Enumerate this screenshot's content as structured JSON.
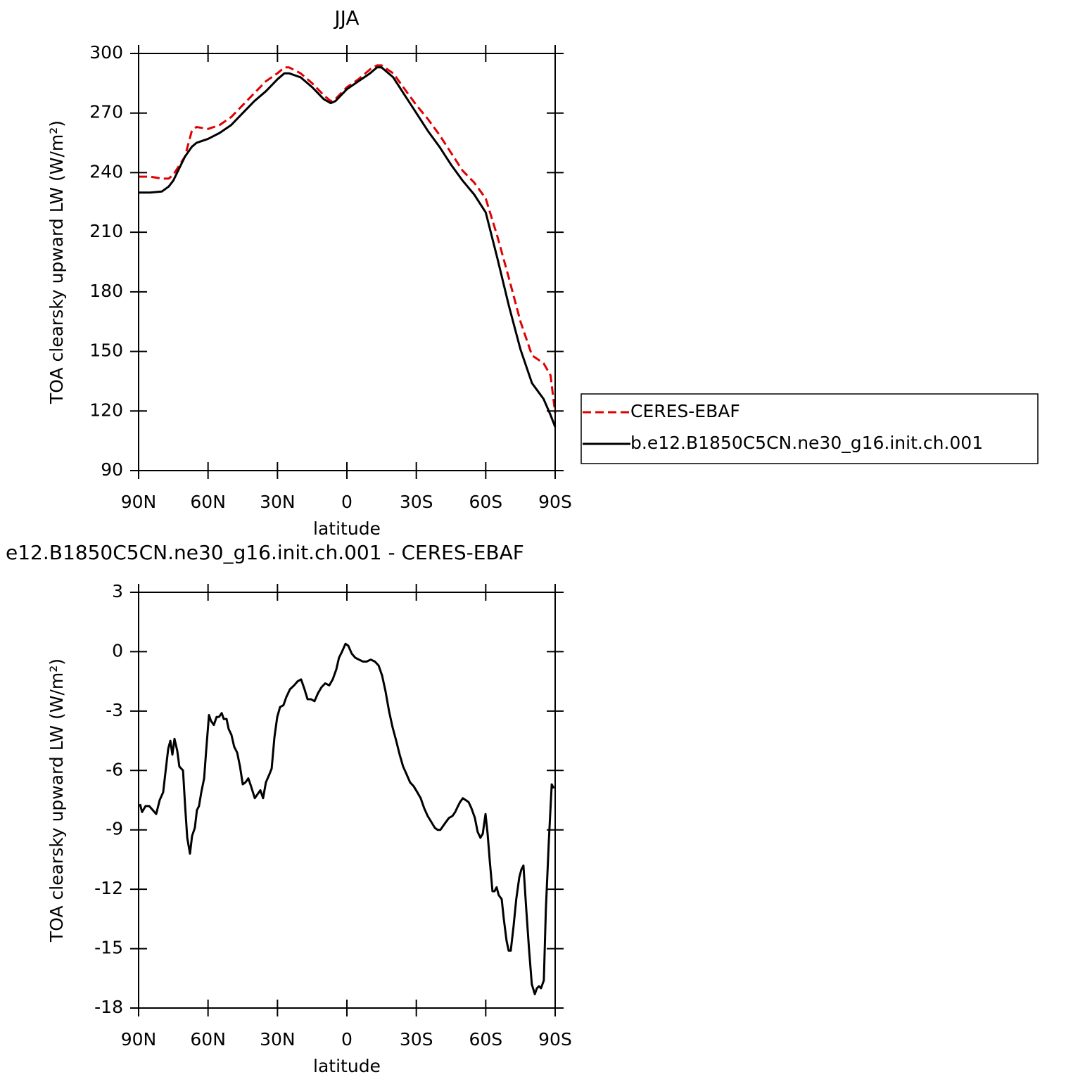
{
  "chart_data": [
    {
      "type": "line",
      "title": "JJA",
      "x_label": "latitude",
      "y_label": "TOA clearsky upward LW (W/m²)",
      "x": [
        90,
        85,
        80,
        77,
        75,
        70,
        67,
        65,
        60,
        55,
        50,
        45,
        40,
        35,
        30,
        27,
        25,
        20,
        15,
        10,
        7,
        5,
        0,
        -5,
        -10,
        -13,
        -15,
        -20,
        -25,
        -30,
        -35,
        -40,
        -45,
        -50,
        -55,
        -60,
        -65,
        -70,
        -75,
        -80,
        -85,
        -88,
        -90
      ],
      "series": [
        {
          "name": "CERES-EBAF",
          "color": "#e00000",
          "line_style": "dashed",
          "values": [
            238,
            238,
            237,
            237,
            239,
            248,
            261,
            263,
            262,
            264,
            268,
            274,
            280,
            286,
            290,
            293,
            293,
            290,
            285,
            279,
            276,
            277,
            283,
            287,
            292,
            294,
            294,
            290,
            282,
            274,
            267,
            259,
            250,
            241,
            235,
            227,
            208,
            187,
            165,
            148,
            144,
            138,
            119
          ]
        },
        {
          "name": "b.e12.B1850C5CN.ne30_g16.init.ch.001",
          "color": "#000000",
          "line_style": "solid",
          "values": [
            230,
            230,
            230.5,
            233,
            236,
            248,
            253,
            255,
            257,
            260,
            264,
            270,
            276,
            281,
            287,
            290,
            290,
            288,
            283,
            277,
            275,
            276,
            282,
            286,
            290,
            293,
            293,
            288,
            279,
            270,
            261,
            253,
            244,
            236,
            229,
            220,
            197,
            173,
            151,
            134,
            126,
            118,
            112
          ]
        }
      ],
      "xlim": [
        90,
        -90
      ],
      "xticks": [
        {
          "value": 90,
          "label": "90N"
        },
        {
          "value": 60,
          "label": "60N"
        },
        {
          "value": 30,
          "label": "30N"
        },
        0,
        {
          "value": -30,
          "label": "30S"
        },
        {
          "value": -60,
          "label": "60S"
        },
        {
          "value": -90,
          "label": "90S"
        }
      ],
      "ylim": [
        90,
        300
      ],
      "yticks": [
        90,
        120,
        150,
        180,
        210,
        240,
        270,
        300
      ],
      "legend": "right"
    },
    {
      "type": "line",
      "title": "e12.B1850C5CN.ne30_g16.init.ch.001 - CERES-EBAF",
      "x_label": "latitude",
      "y_label": "TOA clearsky upward LW (W/m²)",
      "color": "#000000",
      "x": [
        89.4,
        88.5,
        87.0,
        85.4,
        83.9,
        82.4,
        80.9,
        79.4,
        78.1,
        77.2,
        76.3,
        75.4,
        74.5,
        73.3,
        72.4,
        70.8,
        69.9,
        69.0,
        67.8,
        66.9,
        65.7,
        64.8,
        63.9,
        62.9,
        61.7,
        60.8,
        59.6,
        58.7,
        57.5,
        56.3,
        55.3,
        54.1,
        53.2,
        52.0,
        51.1,
        49.9,
        48.7,
        47.4,
        46.2,
        45.0,
        43.8,
        42.6,
        41.4,
        39.8,
        38.6,
        37.4,
        36.2,
        35.0,
        33.5,
        32.5,
        31.3,
        30.1,
        28.9,
        27.4,
        26.2,
        24.6,
        22.8,
        21.3,
        19.8,
        18.3,
        17.0,
        15.5,
        14.0,
        12.5,
        11.0,
        9.4,
        7.6,
        6.1,
        4.6,
        3.4,
        2.1,
        0.6,
        -0.6,
        -2.1,
        -3.6,
        -5.2,
        -7.0,
        -8.5,
        -10.3,
        -12.1,
        -13.7,
        -15.2,
        -16.7,
        -18.2,
        -19.7,
        -21.3,
        -22.8,
        -24.3,
        -25.8,
        -27.3,
        -28.9,
        -30.4,
        -31.9,
        -33.4,
        -34.9,
        -36.5,
        -38.0,
        -39.2,
        -40.4,
        -41.6,
        -42.8,
        -44.1,
        -45.6,
        -46.8,
        -48.0,
        -48.9,
        -50.1,
        -51.4,
        -52.6,
        -53.8,
        -55.3,
        -56.5,
        -57.7,
        -58.7,
        -59.9,
        -60.8,
        -61.7,
        -62.9,
        -63.8,
        -64.7,
        -65.6,
        -66.9,
        -67.8,
        -69.0,
        -69.9,
        -70.8,
        -72.0,
        -73.2,
        -74.5,
        -75.4,
        -76.3,
        -77.5,
        -78.7,
        -79.9,
        -81.2,
        -82.1,
        -83.0,
        -83.9,
        -85.1,
        -86.0,
        -87.3,
        -88.5,
        -89.4
      ],
      "values": [
        -7.7,
        -8.1,
        -7.8,
        -7.8,
        -8.0,
        -8.2,
        -7.5,
        -7.1,
        -5.8,
        -4.9,
        -4.5,
        -5.2,
        -4.4,
        -5.0,
        -5.8,
        -6.0,
        -7.8,
        -9.4,
        -10.2,
        -9.3,
        -8.9,
        -8.0,
        -7.8,
        -7.1,
        -6.4,
        -5.0,
        -3.2,
        -3.5,
        -3.7,
        -3.3,
        -3.3,
        -3.1,
        -3.4,
        -3.4,
        -3.9,
        -4.2,
        -4.8,
        -5.1,
        -5.8,
        -6.7,
        -6.6,
        -6.4,
        -6.8,
        -7.4,
        -7.2,
        -7.0,
        -7.4,
        -6.6,
        -6.2,
        -5.9,
        -4.3,
        -3.3,
        -2.8,
        -2.7,
        -2.3,
        -1.9,
        -1.7,
        -1.5,
        -1.4,
        -1.9,
        -2.4,
        -2.4,
        -2.5,
        -2.1,
        -1.8,
        -1.6,
        -1.7,
        -1.4,
        -0.9,
        -0.3,
        0.0,
        0.4,
        0.3,
        -0.1,
        -0.3,
        -0.4,
        -0.5,
        -0.5,
        -0.4,
        -0.5,
        -0.7,
        -1.2,
        -2.0,
        -3.0,
        -3.8,
        -4.5,
        -5.2,
        -5.8,
        -6.2,
        -6.6,
        -6.8,
        -7.1,
        -7.4,
        -7.9,
        -8.3,
        -8.6,
        -8.9,
        -9.0,
        -9.0,
        -8.8,
        -8.6,
        -8.4,
        -8.3,
        -8.1,
        -7.8,
        -7.6,
        -7.4,
        -7.5,
        -7.6,
        -7.9,
        -8.4,
        -9.1,
        -9.4,
        -9.2,
        -8.2,
        -9.2,
        -10.5,
        -12.1,
        -12.1,
        -11.9,
        -12.3,
        -12.5,
        -13.5,
        -14.6,
        -15.1,
        -15.1,
        -13.9,
        -12.5,
        -11.4,
        -11.0,
        -10.8,
        -13.0,
        -15.0,
        -16.8,
        -17.3,
        -17.0,
        -16.9,
        -17.0,
        -16.6,
        -13.0,
        -9.5,
        -6.7,
        -6.9
      ],
      "xlim": [
        90,
        -90
      ],
      "xticks": [
        {
          "value": 90,
          "label": "90N"
        },
        {
          "value": 60,
          "label": "60N"
        },
        {
          "value": 30,
          "label": "30N"
        },
        0,
        {
          "value": -30,
          "label": "30S"
        },
        {
          "value": -60,
          "label": "60S"
        },
        {
          "value": -90,
          "label": "90S"
        }
      ],
      "ylim": [
        -18,
        3
      ],
      "yticks": [
        -18,
        -15,
        -12,
        -9,
        -6,
        -3,
        0,
        3
      ]
    }
  ]
}
